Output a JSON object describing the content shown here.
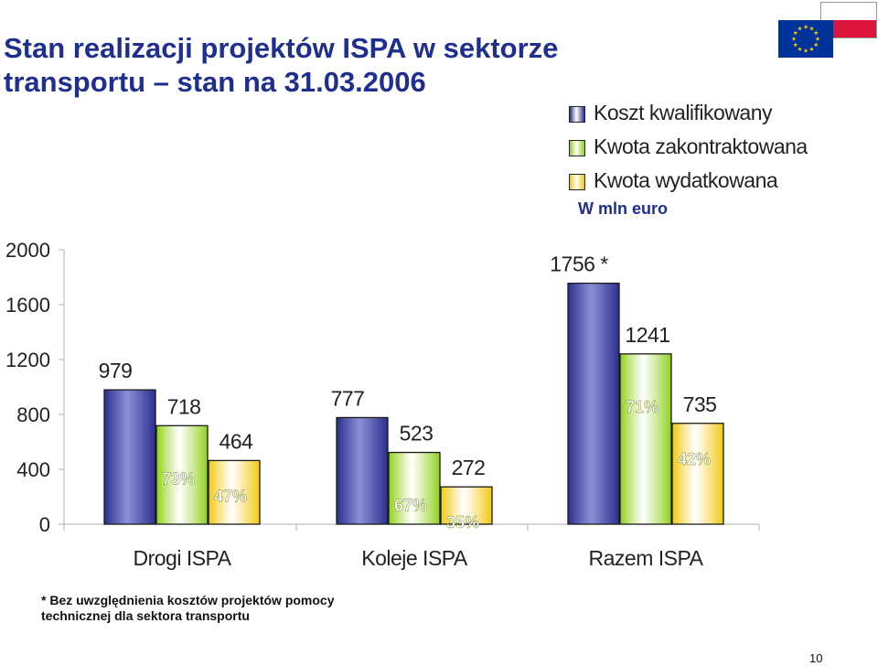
{
  "title_lines": [
    "Stan realizacji projektów ISPA w sektorze",
    "transportu – stan na 31.03.2006"
  ],
  "units_label": "W mln euro",
  "footnote_lines": [
    "* Bez uwzględnienia kosztów projektów pomocy",
    "technicznej dla sektora transportu"
  ],
  "page_number": "10",
  "flags": {
    "poland_colors": [
      "#ffffff",
      "#dc143c"
    ],
    "eu_color": "#003399",
    "eu_star_color": "#ffcc00"
  },
  "chart_data": {
    "type": "bar",
    "categories": [
      "Drogi ISPA",
      "Koleje ISPA",
      "Razem ISPA"
    ],
    "series": [
      {
        "name": "Koszt kwalifikowany",
        "values": [
          979,
          777,
          1756
        ],
        "value_labels": [
          "979",
          "777",
          "1756 *"
        ],
        "pct_labels": [
          "",
          "",
          ""
        ],
        "color": "#2b2f8c"
      },
      {
        "name": "Kwota zakontraktowana",
        "values": [
          718,
          523,
          1241
        ],
        "value_labels": [
          "718",
          "523",
          "1241"
        ],
        "pct_labels": [
          "73%",
          "67%",
          "71%"
        ],
        "color": "#8fd11a"
      },
      {
        "name": "Kwota wydatkowana",
        "values": [
          464,
          272,
          735
        ],
        "value_labels": [
          "464",
          "272",
          "735"
        ],
        "pct_labels": [
          "47%",
          "35%",
          "42%"
        ],
        "color": "#f2c80f"
      }
    ],
    "yticks": [
      0,
      400,
      800,
      1200,
      1600,
      2000
    ],
    "ylim": [
      0,
      2000
    ],
    "grid": false,
    "legend_position": "top-right",
    "title": "",
    "xlabel": "",
    "ylabel": ""
  }
}
